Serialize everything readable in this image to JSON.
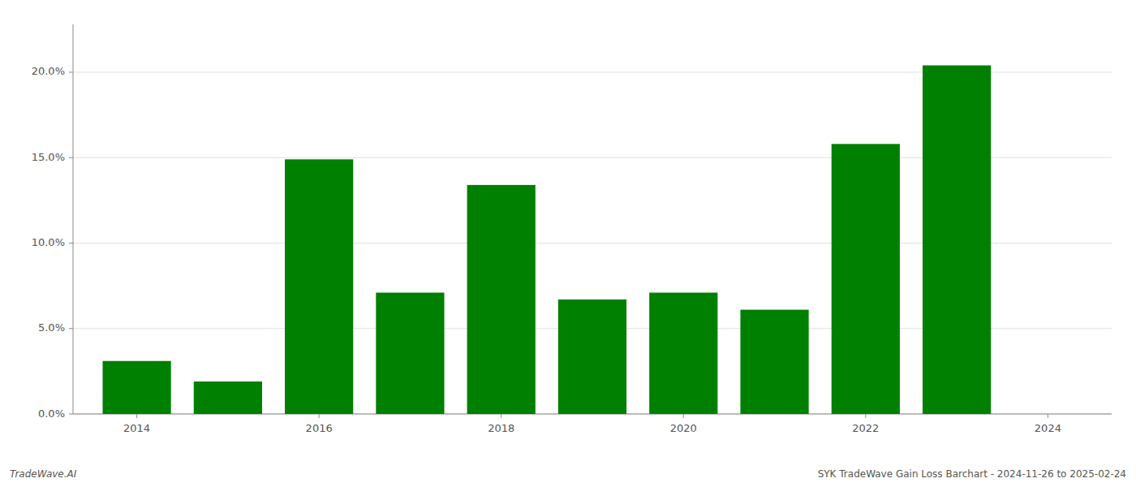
{
  "chart_data": {
    "type": "bar",
    "x": [
      2014,
      2015,
      2016,
      2017,
      2018,
      2019,
      2020,
      2021,
      2022,
      2023
    ],
    "values": [
      0.031,
      0.019,
      0.149,
      0.071,
      0.134,
      0.067,
      0.071,
      0.061,
      0.158,
      0.204
    ],
    "color": "#008000",
    "xlim": [
      2013.3,
      2024.7
    ],
    "xticks": [
      2014,
      2016,
      2018,
      2020,
      2022,
      2024
    ],
    "ylim": [
      0.0,
      0.228
    ],
    "yticks": [
      {
        "value": 0.0,
        "label": "0.0%"
      },
      {
        "value": 0.05,
        "label": "5.0%"
      },
      {
        "value": 0.1,
        "label": "10.0%"
      },
      {
        "value": 0.15,
        "label": "15.0%"
      },
      {
        "value": 0.2,
        "label": "20.0%"
      }
    ],
    "grid": true,
    "annotations": [
      "TradeWave.AI",
      "SYK TradeWave Gain Loss Barchart - 2024-11-26 to 2025-02-24"
    ]
  }
}
